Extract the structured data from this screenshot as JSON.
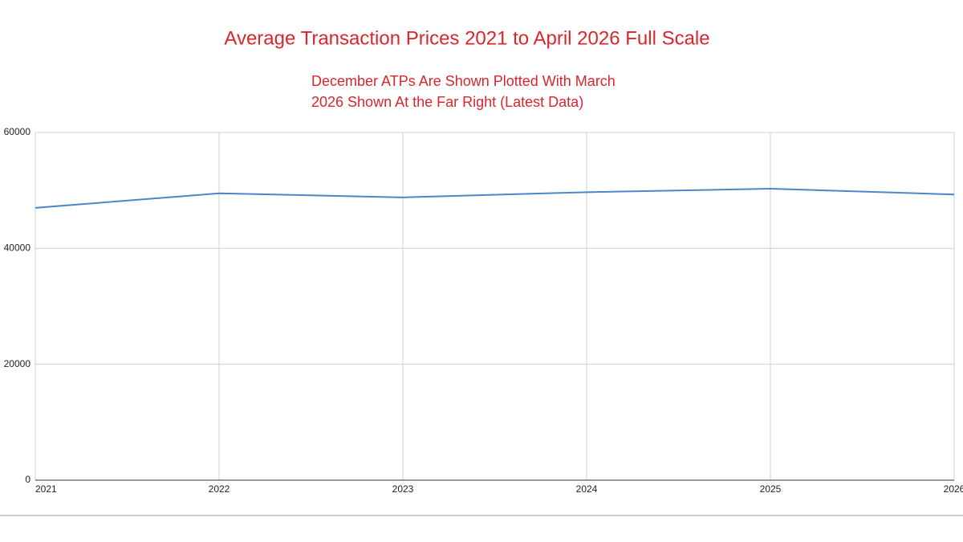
{
  "chart_data": {
    "type": "line",
    "title": "Average Transaction Prices 2021 to April 2026 Full Scale",
    "subtitle": [
      "December ATPs Are Shown Plotted With March",
      "2026 Shown At the Far Right (Latest Data)"
    ],
    "x": [
      2021,
      2022,
      2023,
      2024,
      2025,
      2026
    ],
    "series": [
      {
        "color": "#4a86c8",
        "values": [
          47000,
          49500,
          48800,
          49700,
          50300,
          49300
        ]
      }
    ],
    "xlim": [
      2021,
      2026
    ],
    "xticks": [
      2021,
      2022,
      2023,
      2024,
      2025,
      2026
    ],
    "ylim": [
      0,
      60000
    ],
    "yticks": [
      0,
      20000,
      40000,
      60000
    ],
    "grid": true
  }
}
